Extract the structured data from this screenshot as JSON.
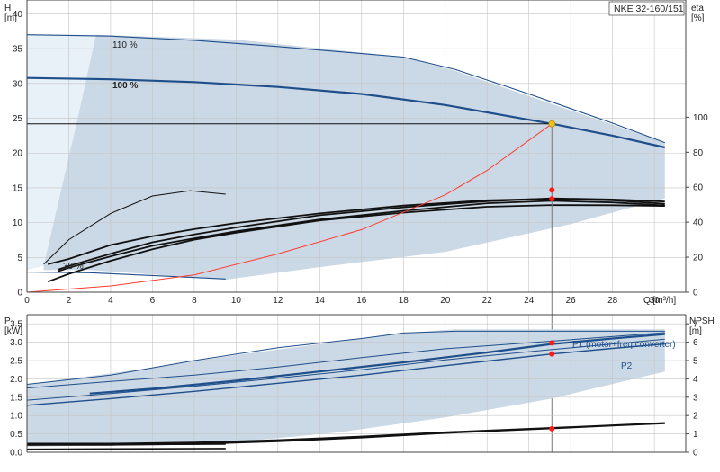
{
  "model_label": "NKE 32-160/151",
  "chart_data": [
    {
      "type": "line",
      "id": "head",
      "ylabel_left": "H",
      "yunit_left": "[m]",
      "ylabel_right": "eta",
      "yunit_right": "[%]",
      "xlabel": "Q [m³/h]",
      "xlim": [
        0,
        31.5
      ],
      "ylim": [
        0,
        42
      ],
      "xticks": [
        0,
        2,
        4,
        6,
        8,
        10,
        12,
        14,
        16,
        18,
        20,
        22,
        24,
        26,
        28,
        30
      ],
      "yticks": [
        0,
        5,
        10,
        15,
        20,
        25,
        30,
        35,
        40
      ],
      "right_ticks": [
        0,
        20,
        40,
        60,
        80,
        100
      ],
      "right_lim": [
        0,
        167
      ],
      "grid": true,
      "colors": {
        "region": "#cbd8e5",
        "region_light": "#e8f0f8",
        "curve": "#1f4f8a",
        "efficiency": "#111111",
        "system": "#ff3b30",
        "duty_fill": "#f2c417"
      },
      "operating_region": [
        [
          0.8,
          3.8
        ],
        [
          2.5,
          26
        ],
        [
          3.3,
          37
        ],
        [
          10,
          36.3
        ],
        [
          18,
          33.8
        ],
        [
          20.5,
          31.8
        ],
        [
          30.5,
          21.5
        ],
        [
          30.5,
          13.5
        ],
        [
          26,
          9.8
        ],
        [
          20,
          5.8
        ],
        [
          14,
          3.6
        ],
        [
          9.5,
          1.8
        ],
        [
          3,
          3.2
        ],
        [
          0.8,
          3.2
        ]
      ],
      "series": [
        {
          "name": "110 %",
          "role": "speed",
          "width": 1.1,
          "x": [
            0,
            4,
            8,
            12,
            16,
            18,
            20.5,
            24,
            28,
            30.5
          ],
          "y": [
            37,
            36.8,
            36.2,
            35.3,
            34.3,
            33.8,
            32,
            28.5,
            24.3,
            21.5
          ]
        },
        {
          "name": "100 %",
          "role": "speed",
          "width": 2.2,
          "x": [
            0,
            4,
            8,
            12,
            16,
            20,
            25.1,
            28,
            30.5
          ],
          "y": [
            30.8,
            30.6,
            30.2,
            29.5,
            28.5,
            26.9,
            24.2,
            22.5,
            20.8
          ]
        },
        {
          "name": "30 %",
          "role": "speed",
          "width": 1.1,
          "x": [
            0,
            3,
            6,
            9.5
          ],
          "y": [
            2.9,
            2.8,
            2.4,
            1.9
          ]
        },
        {
          "role": "efficiency",
          "width": 1.8,
          "x": [
            1,
            2,
            4,
            6,
            8,
            10,
            14,
            18,
            22,
            25.1,
            28,
            30.5
          ],
          "y": [
            16,
            19,
            27,
            32,
            36,
            39.5,
            45,
            49.5,
            52.5,
            53.4,
            52.5,
            50.5
          ]
        },
        {
          "role": "efficiency",
          "width": 1.8,
          "x": [
            1.5,
            2,
            4,
            6,
            8,
            10,
            14,
            18,
            22,
            25.1,
            28,
            30.5
          ],
          "y": [
            13,
            15,
            22,
            28.5,
            33,
            37,
            44,
            48.5,
            52,
            53.6,
            53,
            51.8
          ]
        },
        {
          "role": "efficiency",
          "width": 1.8,
          "x": [
            1.5,
            2,
            4,
            6,
            8,
            10,
            14,
            18,
            22,
            25.1,
            28,
            30.5
          ],
          "y": [
            12,
            14,
            20.5,
            26.5,
            30.8,
            34.8,
            41.5,
            46.5,
            50.8,
            52.2,
            51.3,
            49.6
          ]
        },
        {
          "role": "efficiency",
          "width": 1.8,
          "x": [
            1,
            2,
            4,
            6,
            8,
            10,
            14,
            18,
            22,
            25.1,
            28,
            30.5
          ],
          "y": [
            6,
            10.5,
            18,
            24.5,
            30,
            34,
            41,
            45.5,
            48.8,
            49.8,
            49.7,
            49.3
          ]
        },
        {
          "role": "efficiency",
          "width": 1,
          "x": [
            0.8,
            2,
            4,
            6,
            7.8,
            9.5
          ],
          "y": [
            16,
            30,
            45,
            55,
            58,
            56
          ]
        },
        {
          "role": "system",
          "width": 1,
          "x": [
            0,
            4,
            8,
            12,
            16,
            20,
            22,
            25.1
          ],
          "y": [
            0,
            0.9,
            2.5,
            5.5,
            9,
            14,
            17.5,
            24.2
          ]
        }
      ],
      "duty_point": {
        "x": 25.1,
        "y": 24.2
      },
      "eta_points": [
        {
          "x": 25.1,
          "y": 53.4
        },
        {
          "x": 25.1,
          "y": 58.4
        }
      ]
    },
    {
      "type": "line",
      "id": "power",
      "ylabel_left": "P",
      "yunit_left": "[kW]",
      "ylabel_right": "NPSH",
      "yunit_right": "[m]",
      "xlim": [
        0,
        31.5
      ],
      "ylim": [
        0,
        3.75
      ],
      "yticks": [
        0,
        0.5,
        1,
        1.5,
        2,
        2.5,
        3,
        3.5
      ],
      "right_ticks": [
        0,
        1,
        2,
        3,
        4,
        5,
        6,
        7
      ],
      "right_lim": [
        0,
        7.5
      ],
      "grid": true,
      "operating_region": [
        [
          0,
          1.85
        ],
        [
          4,
          2.15
        ],
        [
          10,
          2.65
        ],
        [
          18,
          3.25
        ],
        [
          20.5,
          3.35
        ],
        [
          30.5,
          3.35
        ],
        [
          30.5,
          2.2
        ],
        [
          25,
          1.45
        ],
        [
          20,
          0.95
        ],
        [
          15,
          0.55
        ],
        [
          9.5,
          0.25
        ],
        [
          0,
          0.15
        ]
      ],
      "series": [
        {
          "name": "P1 (motor+freq.converter)",
          "role": "p1",
          "width": 2.2,
          "x": [
            3,
            6,
            10,
            14,
            18,
            22,
            25.1,
            28,
            30.5
          ],
          "y": [
            1.6,
            1.73,
            1.95,
            2.2,
            2.45,
            2.72,
            2.95,
            3.1,
            3.22
          ]
        },
        {
          "name": "P2",
          "role": "p2",
          "width": 1.4,
          "x": [
            0,
            4,
            8,
            12,
            16,
            20,
            25.1,
            28,
            30.5
          ],
          "y": [
            1.28,
            1.46,
            1.66,
            1.88,
            2.1,
            2.36,
            2.68,
            2.83,
            2.95
          ]
        },
        {
          "role": "p1-thin",
          "width": 1,
          "x": [
            0,
            4,
            8,
            12,
            16,
            20,
            25.1,
            30.5
          ],
          "y": [
            1.75,
            1.93,
            2.1,
            2.32,
            2.58,
            2.82,
            3.03,
            3.26
          ]
        },
        {
          "role": "p1-thin",
          "width": 1,
          "x": [
            0,
            4,
            8,
            12,
            16,
            20,
            25.1,
            30.5
          ],
          "y": [
            1.42,
            1.6,
            1.8,
            2.02,
            2.25,
            2.52,
            2.8,
            3.08
          ]
        },
        {
          "role": "p1-thin",
          "width": 1,
          "x": [
            0,
            4,
            8,
            12,
            16,
            18,
            20.5,
            30.5
          ],
          "y": [
            1.85,
            2.1,
            2.5,
            2.85,
            3.1,
            3.25,
            3.3,
            3.3
          ]
        },
        {
          "role": "npsh",
          "width": 1.8,
          "x": [
            0,
            4,
            8,
            12,
            16,
            20,
            25.1,
            28,
            30.5
          ],
          "y": [
            0.4,
            0.4,
            0.45,
            0.6,
            0.8,
            1.05,
            1.3,
            1.45,
            1.58
          ]
        },
        {
          "role": "npsh",
          "width": 1.8,
          "x": [
            0,
            4,
            8,
            12,
            16,
            20,
            25.1,
            28,
            30.5
          ],
          "y": [
            0.47,
            0.47,
            0.53,
            0.66,
            0.86,
            1.09,
            1.33,
            1.47,
            1.6
          ]
        },
        {
          "role": "low-speed",
          "width": 1.6,
          "x": [
            0,
            9.5
          ],
          "y": [
            0.2,
            0.22
          ]
        },
        {
          "role": "low-speed",
          "width": 1.6,
          "x": [
            0,
            9.5
          ],
          "y": [
            0.08,
            0.1
          ]
        }
      ],
      "points": [
        {
          "x": 25.1,
          "y": 2.98
        },
        {
          "x": 25.1,
          "y": 2.68
        },
        {
          "x": 25.1,
          "y": 1.28
        }
      ]
    }
  ]
}
